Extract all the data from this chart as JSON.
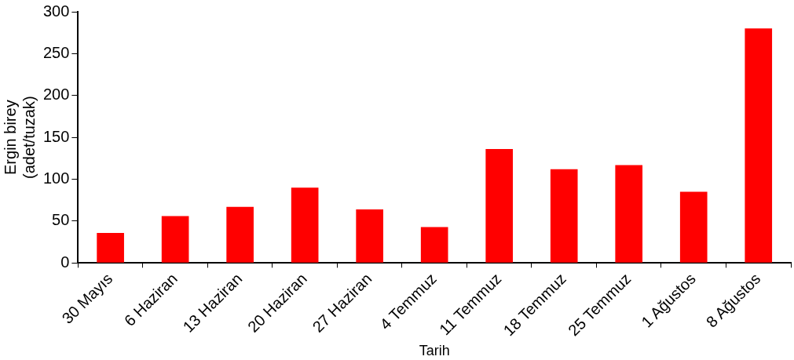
{
  "chart_data": {
    "type": "bar",
    "xlabel": "Tarih",
    "ylabel": "Ergin birey\n(adet/tuzak)",
    "categories": [
      "30 Mayıs",
      "6 Haziran",
      "13 Haziran",
      "20 Haziran",
      "27 Haziran",
      "4 Temmuz",
      "11 Temmuz",
      "18 Temmuz",
      "25 Temmuz",
      "1 Ağustos",
      "8 Ağustos"
    ],
    "values": [
      36,
      56,
      67,
      90,
      64,
      43,
      136,
      112,
      117,
      85,
      280
    ],
    "color": "#ff0000",
    "ylim": [
      0,
      300
    ],
    "yticks": [
      0,
      50,
      100,
      150,
      200,
      250,
      300
    ],
    "grid": false,
    "legend": false
  }
}
